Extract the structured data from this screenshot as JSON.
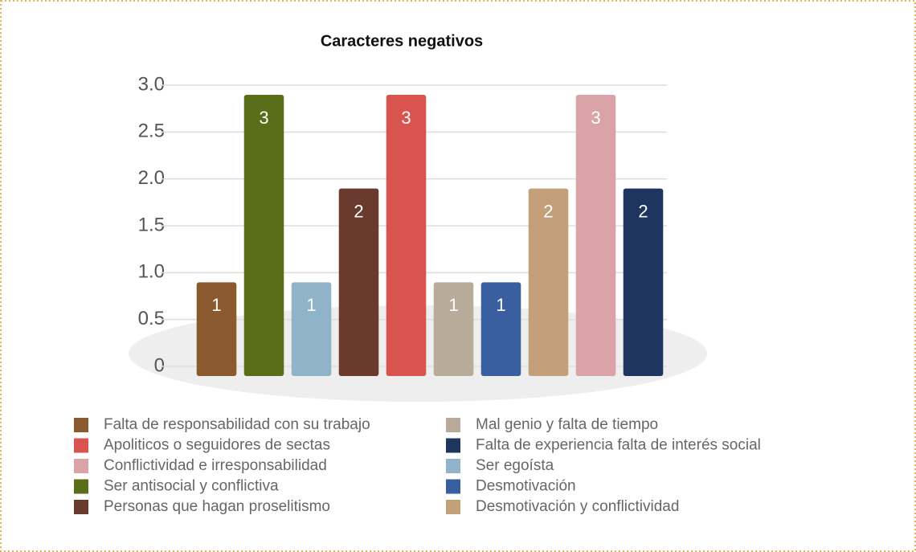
{
  "chart_data": {
    "type": "bar",
    "title": "Caracteres negativos",
    "categories": [
      null,
      null,
      null,
      null,
      null,
      null,
      null,
      null,
      null,
      null
    ],
    "series": [
      {
        "name": "Falta de responsabilidad con su trabajo",
        "color": "#8a5a2e",
        "values": [
          1,
          null,
          null,
          null,
          null,
          null,
          null,
          null,
          null,
          null
        ]
      },
      {
        "name": "Apoliticos o seguidores de sectas",
        "color": "#d9534f",
        "values": [
          null,
          null,
          null,
          null,
          3,
          null,
          null,
          null,
          null,
          null
        ]
      },
      {
        "name": "Conflictividad e irresponsabilidad",
        "color": "#d9a3a8",
        "values": [
          null,
          null,
          null,
          null,
          null,
          null,
          null,
          null,
          3,
          null
        ]
      },
      {
        "name": "Ser antisocial y conflictiva",
        "color": "#5a6e1a",
        "values": [
          null,
          3,
          null,
          null,
          null,
          null,
          null,
          null,
          null,
          null
        ]
      },
      {
        "name": "Personas que hagan proselitismo",
        "color": "#6b3a2e",
        "values": [
          null,
          null,
          null,
          2,
          null,
          null,
          null,
          null,
          null,
          null
        ]
      },
      {
        "name": "Mal genio y falta de tiempo",
        "color": "#b8ab9a",
        "values": [
          null,
          null,
          null,
          null,
          null,
          1,
          null,
          null,
          null,
          null
        ]
      },
      {
        "name": "Falta de experiencia falta de interés social",
        "color": "#1e3560",
        "values": [
          null,
          null,
          null,
          null,
          null,
          null,
          null,
          null,
          null,
          2
        ]
      },
      {
        "name": "Ser egoísta",
        "color": "#8fb3c8",
        "values": [
          null,
          null,
          1,
          null,
          null,
          null,
          null,
          null,
          null,
          null
        ]
      },
      {
        "name": "Desmotivación",
        "color": "#3a5fa0",
        "values": [
          null,
          null,
          null,
          null,
          null,
          null,
          1,
          null,
          null,
          null
        ]
      },
      {
        "name": "Desmotivación y conflictividad",
        "color": "#c4a07a",
        "values": [
          null,
          null,
          null,
          null,
          null,
          null,
          null,
          2,
          null,
          null
        ]
      }
    ],
    "ylim": [
      0,
      3
    ],
    "yticks": [
      0,
      0.5,
      {
        "value": 1,
        "label": "1.0"
      },
      1.5,
      {
        "value": 2,
        "label": "2.0"
      },
      2.5,
      {
        "value": 3,
        "label": "3.0"
      }
    ],
    "grid": true
  }
}
